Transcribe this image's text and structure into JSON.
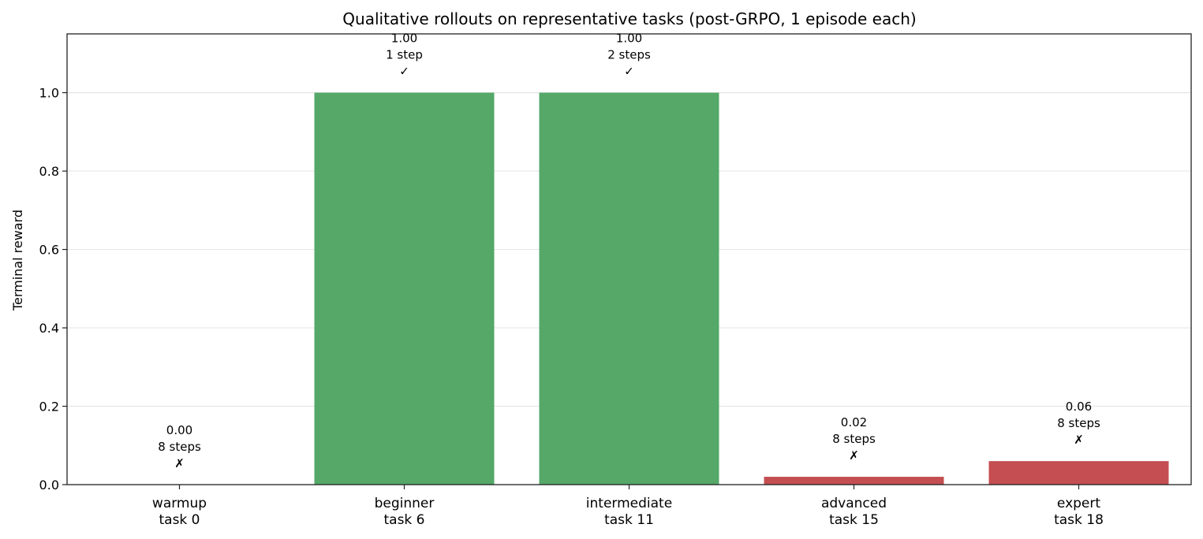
{
  "chart_data": {
    "type": "bar",
    "title": "Qualitative rollouts on representative tasks (post-GRPO, 1 episode each)",
    "xlabel": "",
    "ylabel": "Terminal reward",
    "ylim": [
      0,
      1.15
    ],
    "yticks": [
      "0.0",
      "0.2",
      "0.4",
      "0.6",
      "0.8",
      "1.0"
    ],
    "grid": "horizontal",
    "categories": [
      [
        "warmup",
        "task 0"
      ],
      [
        "beginner",
        "task 6"
      ],
      [
        "intermediate",
        "task 11"
      ],
      [
        "advanced",
        "task 15"
      ],
      [
        "expert",
        "task 18"
      ]
    ],
    "values": [
      0.0,
      1.0,
      1.0,
      0.02,
      0.06
    ],
    "annotations": [
      [
        "0.00",
        "8 steps",
        "✗"
      ],
      [
        "1.00",
        "1 step",
        "✓"
      ],
      [
        "1.00",
        "2 steps",
        "✓"
      ],
      [
        "0.02",
        "8 steps",
        "✗"
      ],
      [
        "0.06",
        "8 steps",
        "✗"
      ]
    ],
    "success": [
      false,
      true,
      true,
      false,
      false
    ],
    "colors": {
      "success": "#55a868",
      "failure": "#c44e52"
    }
  }
}
